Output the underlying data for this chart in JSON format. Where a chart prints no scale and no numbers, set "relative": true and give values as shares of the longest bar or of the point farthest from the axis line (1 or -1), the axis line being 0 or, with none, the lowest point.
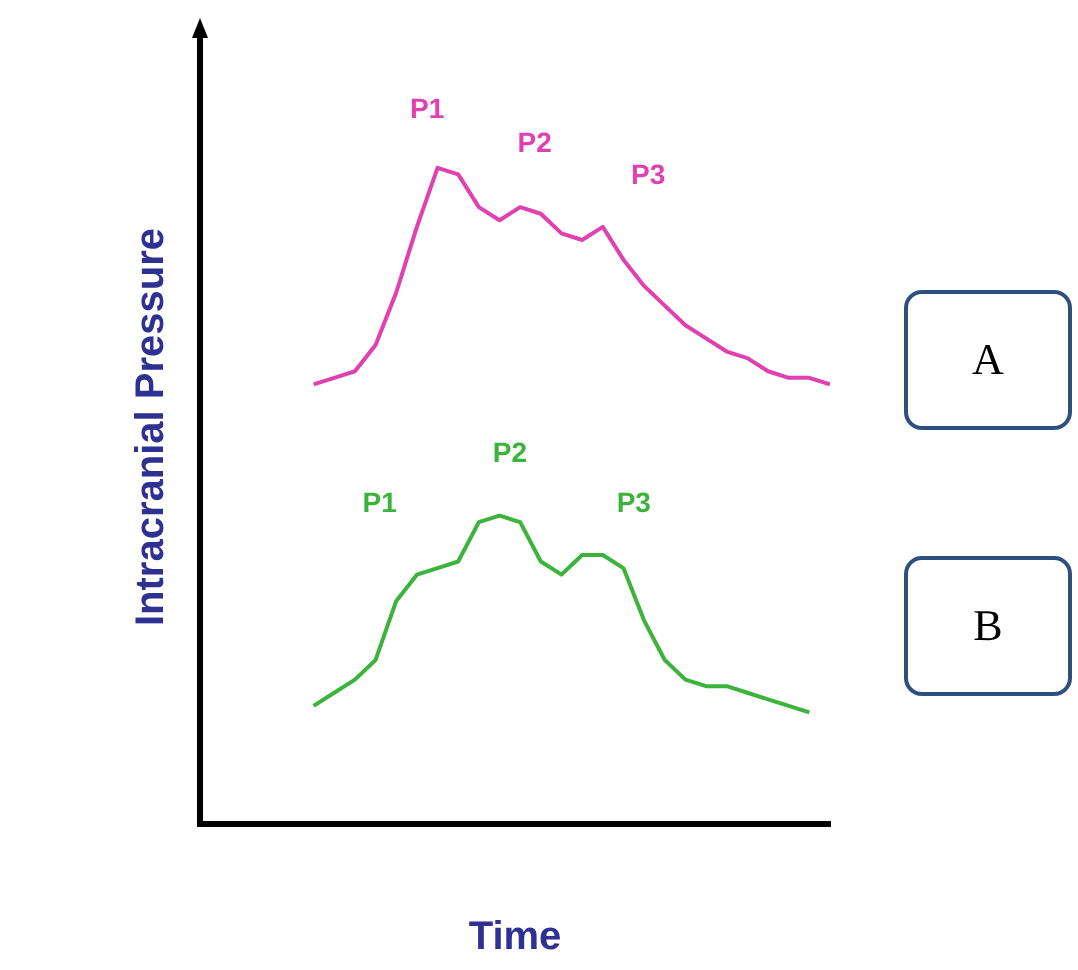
{
  "chart_data": {
    "type": "line",
    "relative": true,
    "xlabel": "Time",
    "ylabel": "Intracranial Pressure",
    "legend": false,
    "marker": "none",
    "line_style": "solid",
    "categories": [
      null,
      null,
      null,
      null,
      null,
      null,
      null,
      null,
      null,
      null,
      null,
      null,
      null,
      null,
      null,
      null,
      null,
      null,
      null,
      null,
      null,
      null,
      null,
      null,
      null,
      null
    ],
    "series": [
      {
        "name": "A",
        "color": "#e040b0",
        "values": [
          0.67,
          0.68,
          0.69,
          0.73,
          0.81,
          0.91,
          1.0,
          0.99,
          0.94,
          0.92,
          0.94,
          0.93,
          0.9,
          0.89,
          0.91,
          0.86,
          0.82,
          0.79,
          0.76,
          0.74,
          0.72,
          0.71,
          0.69,
          0.68,
          0.68,
          0.67
        ]
      },
      {
        "name": "B",
        "color": "#3cb43c",
        "values": [
          0.18,
          0.2,
          0.22,
          0.25,
          0.34,
          0.38,
          0.39,
          0.4,
          0.46,
          0.47,
          0.46,
          0.4,
          0.38,
          0.41,
          0.41,
          0.39,
          0.31,
          0.25,
          0.22,
          0.21,
          0.21,
          0.2,
          0.19,
          0.18,
          0.17,
          null
        ]
      }
    ],
    "annotations": [
      "P1",
      "P2",
      "P3",
      "P1",
      "P2",
      "P3"
    ]
  }
}
